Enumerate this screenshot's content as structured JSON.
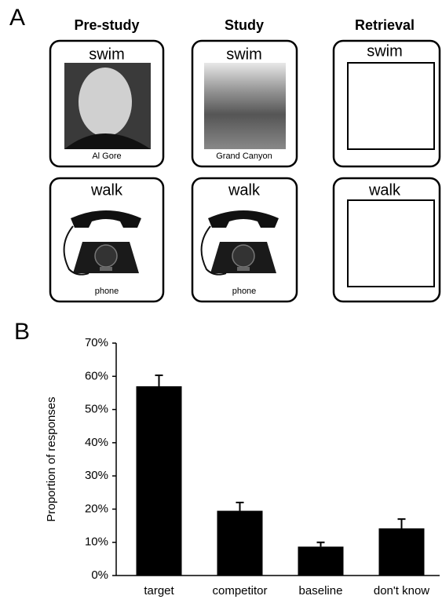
{
  "panel_labels": [
    "A",
    "B"
  ],
  "panel_a": {
    "columns": [
      "Pre-study",
      "Study",
      "Retrieval"
    ],
    "rows": [
      {
        "cards": [
          {
            "word": "swim",
            "caption": "Al Gore"
          },
          {
            "word": "swim",
            "caption": "Grand Canyon"
          },
          {
            "word": "swim"
          }
        ]
      },
      {
        "cards": [
          {
            "word": "walk",
            "caption": "phone"
          },
          {
            "word": "walk",
            "caption": "phone"
          },
          {
            "word": "walk"
          }
        ]
      }
    ]
  },
  "chart_data": {
    "type": "bar",
    "ylabel": "Proportion of responses",
    "categories": [
      "target",
      "competitor",
      "baseline",
      "don't know"
    ],
    "values": [
      57,
      19.5,
      8.7,
      14.2
    ],
    "errors": [
      3.3,
      2.5,
      1.3,
      2.8
    ],
    "color": "#000000",
    "ylim": [
      0,
      70
    ],
    "yticks": [
      {
        "value": 0,
        "label": "0%"
      },
      {
        "value": 10,
        "label": "10%"
      },
      {
        "value": 20,
        "label": "20%"
      },
      {
        "value": 30,
        "label": "30%"
      },
      {
        "value": 40,
        "label": "40%"
      },
      {
        "value": 50,
        "label": "50%"
      },
      {
        "value": 60,
        "label": "60%"
      },
      {
        "value": 70,
        "label": "70%"
      }
    ]
  }
}
